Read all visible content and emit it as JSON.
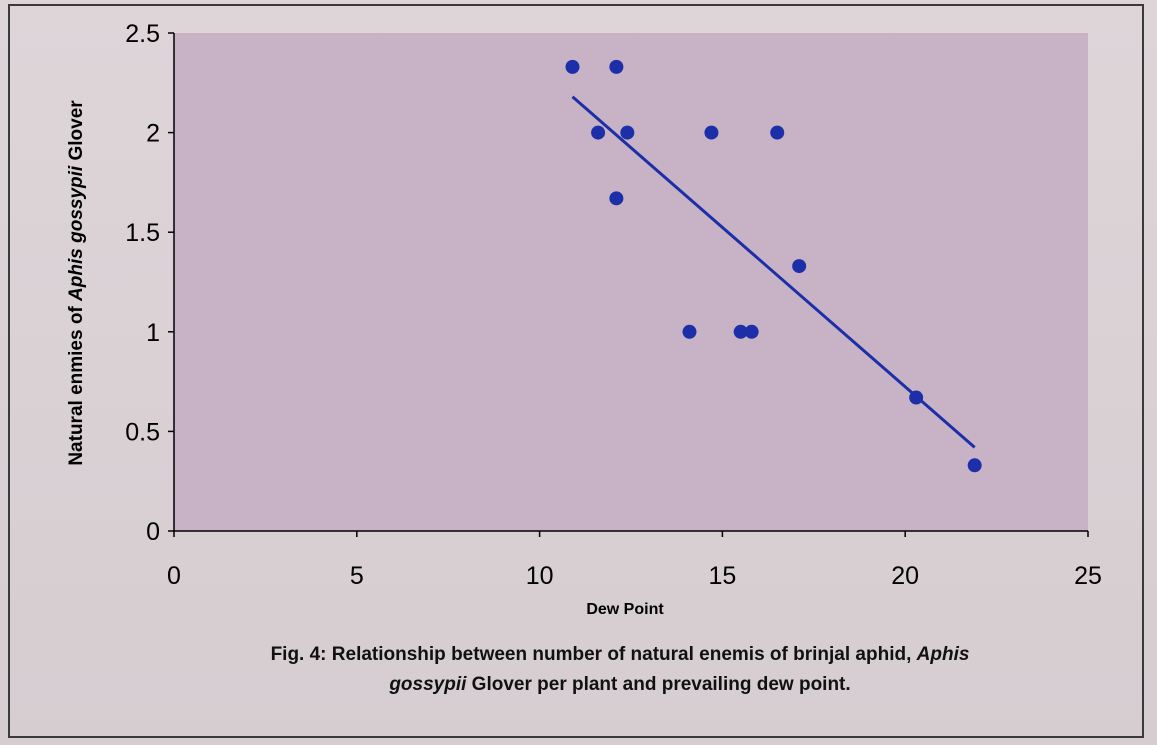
{
  "chart_data": {
    "type": "scatter",
    "xlabel": "Dew Point",
    "ylabel_parts": [
      "Natural enmies of ",
      "Aphis gossypii",
      " Glover"
    ],
    "xlim": [
      0,
      25
    ],
    "ylim": [
      0,
      2.5
    ],
    "x_ticks": [
      "0",
      "5",
      "10",
      "15",
      "20",
      "25"
    ],
    "y_ticks": [
      "0",
      "0.5",
      "1",
      "1.5",
      "2",
      "2.5"
    ],
    "points": [
      {
        "x": 10.9,
        "y": 2.33
      },
      {
        "x": 12.1,
        "y": 2.33
      },
      {
        "x": 11.6,
        "y": 2.0
      },
      {
        "x": 12.4,
        "y": 2.0
      },
      {
        "x": 14.7,
        "y": 2.0
      },
      {
        "x": 16.5,
        "y": 2.0
      },
      {
        "x": 12.1,
        "y": 1.67
      },
      {
        "x": 17.1,
        "y": 1.33
      },
      {
        "x": 14.1,
        "y": 1.0
      },
      {
        "x": 15.5,
        "y": 1.0
      },
      {
        "x": 15.8,
        "y": 1.0
      },
      {
        "x": 20.3,
        "y": 0.67
      },
      {
        "x": 21.9,
        "y": 0.33
      }
    ],
    "trendline": {
      "x": [
        10.9,
        21.9
      ],
      "y": [
        2.18,
        0.42
      ]
    },
    "grid": false,
    "plot_area_color": "#c8b3c6",
    "point_color": "#1c2fa8",
    "line_color": "#1c2fa8"
  },
  "caption": {
    "part1": "Fig. 4: Relationship between number of natural enemis of brinjal aphid, ",
    "italic1": "Aphis",
    "italic2": "gossypii",
    "part2": " Glover per plant and prevailing dew point."
  }
}
